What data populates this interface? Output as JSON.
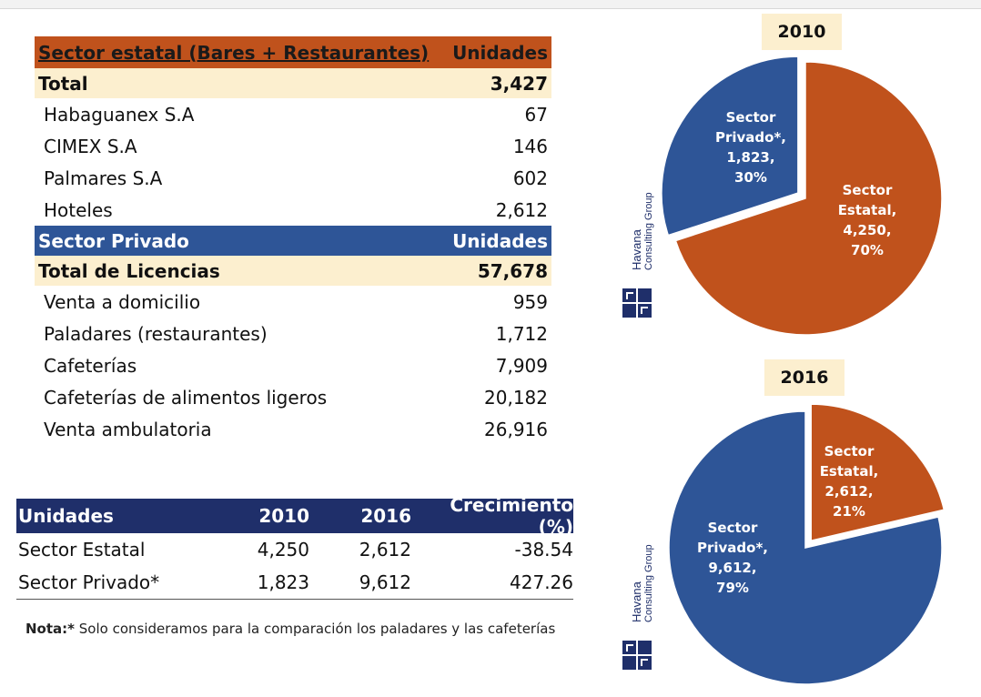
{
  "colors": {
    "state": "#c0521c",
    "private": "#2e5597",
    "header_dark": "#1f2f6a",
    "cream": "#fcefcf"
  },
  "state_table": {
    "header": {
      "label": "Sector estatal (Bares + Restaurantes)",
      "units": "Unidades"
    },
    "total": {
      "label": "Total",
      "value": "3,427"
    },
    "rows": [
      {
        "label": "Habaguanex S.A",
        "value": "67"
      },
      {
        "label": "CIMEX S.A",
        "value": "146"
      },
      {
        "label": "Palmares S.A",
        "value": "602"
      },
      {
        "label": "Hoteles",
        "value": "2,612"
      }
    ]
  },
  "private_table": {
    "header": {
      "label": "Sector Privado",
      "units": "Unidades"
    },
    "total": {
      "label": "Total de Licencias",
      "value": "57,678"
    },
    "rows": [
      {
        "label": "Venta a domicilio",
        "value": "959"
      },
      {
        "label": "Paladares (restaurantes)",
        "value": "1,712"
      },
      {
        "label": "Cafeterías",
        "value": "7,909"
      },
      {
        "label": "Cafeterías de alimentos ligeros",
        "value": "20,182"
      },
      {
        "label": "Venta ambulatoria",
        "value": "26,916"
      }
    ]
  },
  "growth_table": {
    "headers": [
      "Unidades",
      "2010",
      "2016",
      "Crecimiento (%)"
    ],
    "rows": [
      [
        "Sector Estatal",
        "4,250",
        "2,612",
        "-38.54"
      ],
      [
        "Sector Privado*",
        "1,823",
        "9,612",
        "427.26"
      ]
    ]
  },
  "note": {
    "label": "Nota:*",
    "text": " Solo consideramos para la comparación los paladares y las cafeterías"
  },
  "logo": {
    "line1": "Havana",
    "line2": "Consulting Group"
  },
  "chart_data": [
    {
      "type": "pie",
      "title": "2010",
      "slices": [
        {
          "name": "Sector Privado*",
          "value": 1823,
          "percent": 30,
          "label_lines": [
            "Sector",
            "Privado*,",
            "1,823,",
            "30%"
          ],
          "color": "#2e5597",
          "exploded": true
        },
        {
          "name": "Sector Estatal",
          "value": 4250,
          "percent": 70,
          "label_lines": [
            "Sector",
            "Estatal,",
            "4,250,",
            "70%"
          ],
          "color": "#c0521c",
          "exploded": false
        }
      ]
    },
    {
      "type": "pie",
      "title": "2016",
      "slices": [
        {
          "name": "Sector Estatal",
          "value": 2612,
          "percent": 21,
          "label_lines": [
            "Sector",
            "Estatal,",
            "2,612,",
            "21%"
          ],
          "color": "#c0521c",
          "exploded": true
        },
        {
          "name": "Sector Privado*",
          "value": 9612,
          "percent": 79,
          "label_lines": [
            "Sector",
            "Privado*,",
            "9,612,",
            "79%"
          ],
          "color": "#2e5597",
          "exploded": false
        }
      ]
    }
  ]
}
